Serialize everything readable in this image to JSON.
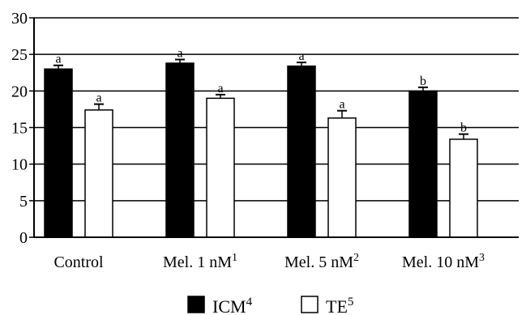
{
  "chart_data": {
    "type": "bar",
    "title": "",
    "xlabel": "",
    "ylabel": "",
    "ylim": [
      0,
      30
    ],
    "yticks": [
      0,
      5,
      10,
      15,
      20,
      25,
      30
    ],
    "grid": true,
    "legend_position": "bottom-center",
    "categories": [
      {
        "main": "Control",
        "sup": ""
      },
      {
        "main": "Mel. 1 nM",
        "sup": "1"
      },
      {
        "main": "Mel. 5 nM",
        "sup": "2"
      },
      {
        "main": "Mel. 10 nM",
        "sup": "3"
      }
    ],
    "series": [
      {
        "name": "ICM",
        "name_sup": "4",
        "color": "#000000",
        "values": [
          23.0,
          23.8,
          23.4,
          20.0
        ],
        "errors": [
          0.5,
          0.5,
          0.5,
          0.5
        ],
        "labels": [
          "a",
          "a",
          "a",
          "b"
        ]
      },
      {
        "name": "TE",
        "name_sup": "5",
        "color": "#ffffff",
        "values": [
          17.4,
          19.0,
          16.3,
          13.4
        ],
        "errors": [
          0.8,
          0.5,
          1.0,
          0.7
        ],
        "labels": [
          "a",
          "a",
          "a",
          "b"
        ]
      }
    ]
  }
}
